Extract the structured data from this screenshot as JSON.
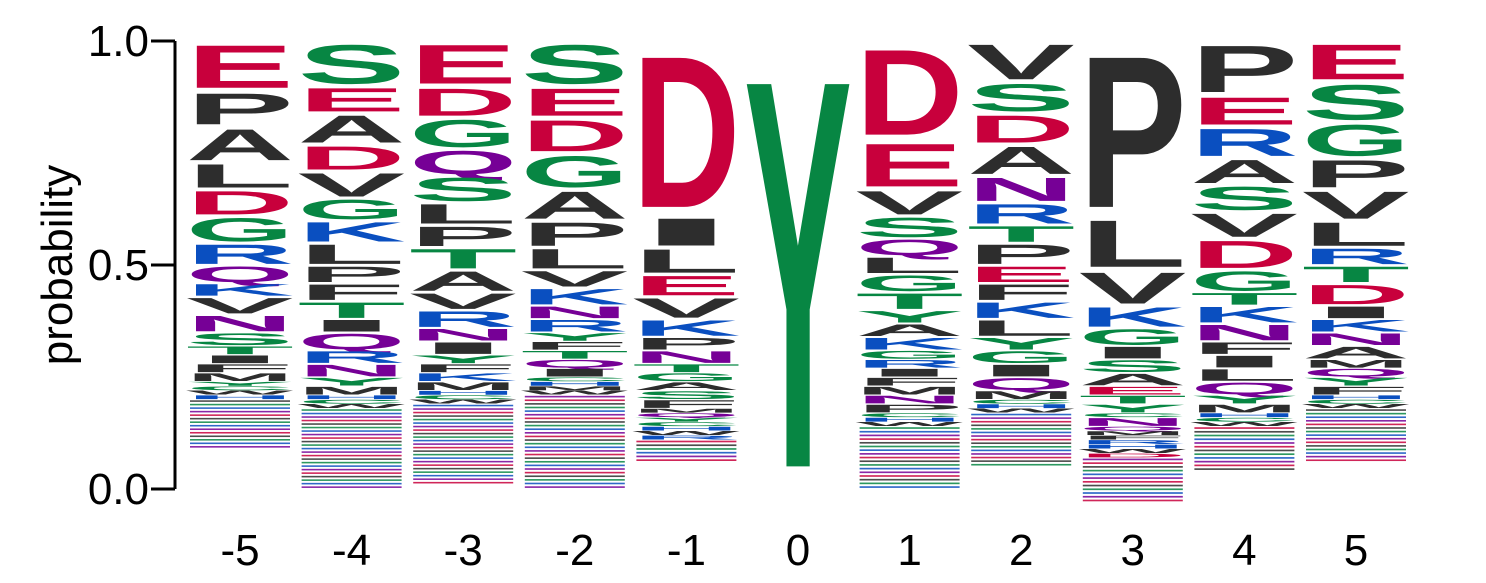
{
  "chart_data": {
    "type": "sequence-logo",
    "ylabel": "probability",
    "ylim": [
      0,
      1
    ],
    "yticks": [
      "0.0",
      "0.5",
      "1.0"
    ],
    "yticks_values": [
      0,
      0.5,
      1
    ],
    "colors": {
      "acidic": "#c8003c",
      "polar": "#078643",
      "basic": "#0a4fc0",
      "amide": "#760096",
      "hydrophobic": "#2d2d2d"
    },
    "residue_colors": {
      "D": "#c8003c",
      "E": "#c8003c",
      "S": "#078643",
      "T": "#078643",
      "G": "#078643",
      "Y": "#078643",
      "C": "#078643",
      "K": "#0a4fc0",
      "R": "#0a4fc0",
      "H": "#0a4fc0",
      "Q": "#760096",
      "N": "#760096",
      "A": "#2d2d2d",
      "P": "#2d2d2d",
      "L": "#2d2d2d",
      "V": "#2d2d2d",
      "I": "#2d2d2d",
      "F": "#2d2d2d",
      "M": "#2d2d2d",
      "W": "#2d2d2d"
    },
    "positions": [
      {
        "label": "-5",
        "stack": [
          [
            "E",
            0.11
          ],
          [
            "P",
            0.08
          ],
          [
            "A",
            0.08
          ],
          [
            "L",
            0.06
          ],
          [
            "D",
            0.06
          ],
          [
            "G",
            0.06
          ],
          [
            "R",
            0.05
          ],
          [
            "Q",
            0.04
          ],
          [
            "K",
            0.03
          ],
          [
            "V",
            0.04
          ],
          [
            "N",
            0.04
          ],
          [
            "S",
            0.03
          ],
          [
            "T",
            0.02
          ],
          [
            "I",
            0.02
          ],
          [
            "F",
            0.02
          ],
          [
            "M",
            0.02
          ],
          [
            "Y",
            0.01
          ],
          [
            "C",
            0.01
          ],
          [
            "W",
            0.01
          ],
          [
            "H",
            0.01
          ],
          [
            "others",
            0.11
          ]
        ]
      },
      {
        "label": "-4",
        "stack": [
          [
            "S",
            0.1
          ],
          [
            "E",
            0.06
          ],
          [
            "A",
            0.07
          ],
          [
            "D",
            0.06
          ],
          [
            "V",
            0.06
          ],
          [
            "G",
            0.05
          ],
          [
            "K",
            0.05
          ],
          [
            "L",
            0.05
          ],
          [
            "P",
            0.04
          ],
          [
            "F",
            0.04
          ],
          [
            "T",
            0.04
          ],
          [
            "I",
            0.03
          ],
          [
            "Q",
            0.04
          ],
          [
            "R",
            0.03
          ],
          [
            "N",
            0.03
          ],
          [
            "Y",
            0.02
          ],
          [
            "M",
            0.02
          ],
          [
            "H",
            0.01
          ],
          [
            "C",
            0.01
          ],
          [
            "W",
            0.01
          ],
          [
            "others",
            0.18
          ]
        ]
      },
      {
        "label": "-3",
        "stack": [
          [
            "E",
            0.1
          ],
          [
            "D",
            0.07
          ],
          [
            "G",
            0.07
          ],
          [
            "Q",
            0.06
          ],
          [
            "S",
            0.06
          ],
          [
            "L",
            0.05
          ],
          [
            "P",
            0.05
          ],
          [
            "T",
            0.05
          ],
          [
            "A",
            0.05
          ],
          [
            "V",
            0.04
          ],
          [
            "R",
            0.04
          ],
          [
            "N",
            0.03
          ],
          [
            "I",
            0.03
          ],
          [
            "Y",
            0.02
          ],
          [
            "F",
            0.02
          ],
          [
            "K",
            0.02
          ],
          [
            "M",
            0.02
          ],
          [
            "H",
            0.01
          ],
          [
            "C",
            0.01
          ],
          [
            "W",
            0.01
          ],
          [
            "others",
            0.18
          ]
        ]
      },
      {
        "label": "-2",
        "stack": [
          [
            "S",
            0.1
          ],
          [
            "E",
            0.07
          ],
          [
            "D",
            0.08
          ],
          [
            "G",
            0.08
          ],
          [
            "A",
            0.07
          ],
          [
            "P",
            0.06
          ],
          [
            "L",
            0.05
          ],
          [
            "V",
            0.04
          ],
          [
            "K",
            0.04
          ],
          [
            "N",
            0.03
          ],
          [
            "R",
            0.03
          ],
          [
            "Y",
            0.02
          ],
          [
            "F",
            0.02
          ],
          [
            "T",
            0.02
          ],
          [
            "Q",
            0.02
          ],
          [
            "I",
            0.02
          ],
          [
            "C",
            0.01
          ],
          [
            "H",
            0.01
          ],
          [
            "M",
            0.01
          ],
          [
            "W",
            0.01
          ],
          [
            "others",
            0.21
          ]
        ]
      },
      {
        "label": "-1",
        "stack": [
          [
            "D",
            0.39
          ],
          [
            "I",
            0.07
          ],
          [
            "L",
            0.06
          ],
          [
            "E",
            0.05
          ],
          [
            "V",
            0.05
          ],
          [
            "K",
            0.04
          ],
          [
            "P",
            0.03
          ],
          [
            "N",
            0.03
          ],
          [
            "T",
            0.02
          ],
          [
            "G",
            0.02
          ],
          [
            "A",
            0.02
          ],
          [
            "S",
            0.02
          ],
          [
            "F",
            0.02
          ],
          [
            "M",
            0.01
          ],
          [
            "Q",
            0.01
          ],
          [
            "Y",
            0.01
          ],
          [
            "C",
            0.01
          ],
          [
            "H",
            0.01
          ],
          [
            "W",
            0.01
          ],
          [
            "R",
            0.01
          ],
          [
            "others",
            0.05
          ]
        ]
      },
      {
        "label": "0",
        "stack": [
          [
            "Y",
            1.0
          ]
        ]
      },
      {
        "label": "1",
        "stack": [
          [
            "D",
            0.22
          ],
          [
            "E",
            0.11
          ],
          [
            "V",
            0.06
          ],
          [
            "S",
            0.05
          ],
          [
            "Q",
            0.04
          ],
          [
            "L",
            0.04
          ],
          [
            "G",
            0.04
          ],
          [
            "T",
            0.04
          ],
          [
            "Y",
            0.03
          ],
          [
            "A",
            0.03
          ],
          [
            "K",
            0.03
          ],
          [
            "G",
            0.02
          ],
          [
            "R",
            0.02
          ],
          [
            "I",
            0.02
          ],
          [
            "F",
            0.02
          ],
          [
            "M",
            0.02
          ],
          [
            "N",
            0.02
          ],
          [
            "P",
            0.02
          ],
          [
            "C",
            0.01
          ],
          [
            "H",
            0.01
          ],
          [
            "W",
            0.01
          ],
          [
            "others",
            0.14
          ]
        ]
      },
      {
        "label": "2",
        "stack": [
          [
            "V",
            0.09
          ],
          [
            "S",
            0.07
          ],
          [
            "D",
            0.07
          ],
          [
            "A",
            0.07
          ],
          [
            "N",
            0.06
          ],
          [
            "R",
            0.05
          ],
          [
            "T",
            0.04
          ],
          [
            "P",
            0.05
          ],
          [
            "E",
            0.04
          ],
          [
            "F",
            0.04
          ],
          [
            "K",
            0.04
          ],
          [
            "L",
            0.04
          ],
          [
            "Y",
            0.03
          ],
          [
            "G",
            0.03
          ],
          [
            "I",
            0.03
          ],
          [
            "Q",
            0.03
          ],
          [
            "M",
            0.02
          ],
          [
            "C",
            0.01
          ],
          [
            "H",
            0.01
          ],
          [
            "W",
            0.01
          ],
          [
            "others",
            0.12
          ]
        ]
      },
      {
        "label": "3",
        "stack": [
          [
            "P",
            0.39
          ],
          [
            "L",
            0.12
          ],
          [
            "V",
            0.08
          ],
          [
            "K",
            0.05
          ],
          [
            "G",
            0.04
          ],
          [
            "I",
            0.03
          ],
          [
            "S",
            0.03
          ],
          [
            "A",
            0.03
          ],
          [
            "E",
            0.02
          ],
          [
            "T",
            0.02
          ],
          [
            "Y",
            0.02
          ],
          [
            "C",
            0.01
          ],
          [
            "N",
            0.02
          ],
          [
            "Q",
            0.01
          ],
          [
            "M",
            0.01
          ],
          [
            "F",
            0.01
          ],
          [
            "R",
            0.01
          ],
          [
            "H",
            0.01
          ],
          [
            "W",
            0.01
          ],
          [
            "D",
            0.01
          ],
          [
            "others",
            0.1
          ]
        ]
      },
      {
        "label": "4",
        "stack": [
          [
            "P",
            0.12
          ],
          [
            "E",
            0.07
          ],
          [
            "R",
            0.07
          ],
          [
            "A",
            0.06
          ],
          [
            "S",
            0.06
          ],
          [
            "V",
            0.06
          ],
          [
            "D",
            0.07
          ],
          [
            "G",
            0.05
          ],
          [
            "T",
            0.03
          ],
          [
            "K",
            0.04
          ],
          [
            "N",
            0.04
          ],
          [
            "F",
            0.03
          ],
          [
            "I",
            0.03
          ],
          [
            "L",
            0.03
          ],
          [
            "Q",
            0.03
          ],
          [
            "Y",
            0.02
          ],
          [
            "M",
            0.02
          ],
          [
            "H",
            0.01
          ],
          [
            "C",
            0.01
          ],
          [
            "W",
            0.01
          ],
          [
            "others",
            0.1
          ]
        ]
      },
      {
        "label": "5",
        "stack": [
          [
            "E",
            0.09
          ],
          [
            "S",
            0.09
          ],
          [
            "G",
            0.08
          ],
          [
            "P",
            0.07
          ],
          [
            "V",
            0.07
          ],
          [
            "L",
            0.06
          ],
          [
            "R",
            0.04
          ],
          [
            "T",
            0.04
          ],
          [
            "D",
            0.05
          ],
          [
            "I",
            0.03
          ],
          [
            "K",
            0.03
          ],
          [
            "N",
            0.03
          ],
          [
            "A",
            0.03
          ],
          [
            "M",
            0.02
          ],
          [
            "Q",
            0.02
          ],
          [
            "Y",
            0.02
          ],
          [
            "F",
            0.02
          ],
          [
            "H",
            0.01
          ],
          [
            "C",
            0.01
          ],
          [
            "W",
            0.01
          ],
          [
            "others",
            0.12
          ]
        ]
      }
    ]
  }
}
